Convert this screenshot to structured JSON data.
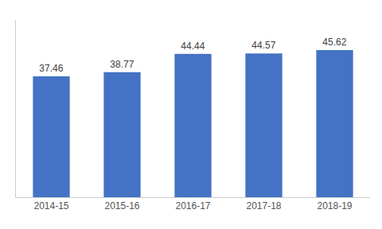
{
  "chart_data": {
    "type": "bar",
    "categories": [
      "2014-15",
      "2015-16",
      "2016-17",
      "2017-18",
      "2018-19"
    ],
    "values": [
      37.46,
      38.77,
      44.44,
      44.57,
      45.62
    ],
    "color": "#4472C4",
    "ylim": [
      0,
      55
    ],
    "grid": false,
    "data_labels": true,
    "tick_labels": "x"
  }
}
